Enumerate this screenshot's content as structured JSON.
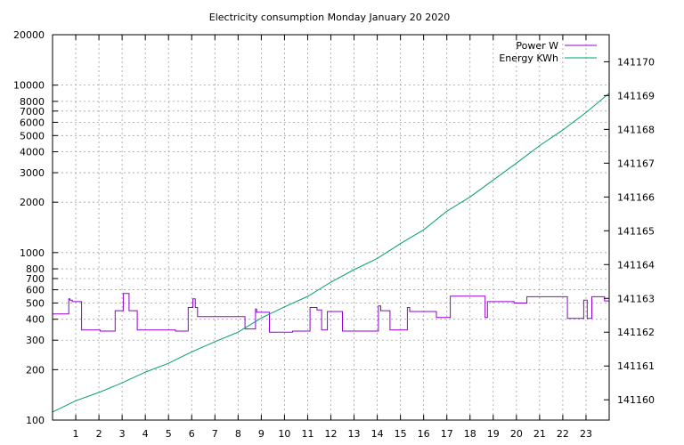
{
  "colors": {
    "power": "#9400d3",
    "energy": "#009e73",
    "grid": "#a0a0a0",
    "axis": "#000000"
  },
  "chart_data": {
    "type": "line",
    "title": "Electricity consumption Monday January 20 2020",
    "xlabel": "",
    "ylabel": "",
    "xlim": [
      0,
      24
    ],
    "x_ticks": [
      1,
      2,
      3,
      4,
      5,
      6,
      7,
      8,
      9,
      10,
      11,
      12,
      13,
      14,
      15,
      16,
      17,
      18,
      19,
      20,
      21,
      22,
      23
    ],
    "ylim_left": [
      100,
      20000
    ],
    "y_scale_left": "log",
    "y_ticks_left": [
      100,
      200,
      300,
      400,
      500,
      600,
      700,
      800,
      1000,
      2000,
      3000,
      4000,
      5000,
      6000,
      7000,
      8000,
      10000,
      20000
    ],
    "ylim_right": [
      141159.4,
      141170.8
    ],
    "y_ticks_right": [
      141160,
      141161,
      141162,
      141163,
      141164,
      141165,
      141166,
      141167,
      141168,
      141169,
      141170
    ],
    "grid": true,
    "legend_position": "top-right",
    "series": [
      {
        "name": "Power W",
        "axis": "left",
        "step": true,
        "x": [
          0,
          0.7,
          0.75,
          0.85,
          1.25,
          2.05,
          2.7,
          3.05,
          3.3,
          3.65,
          5.3,
          5.85,
          6.05,
          6.15,
          6.25,
          6.95,
          8.3,
          8.75,
          8.8,
          9.35,
          10.35,
          11.1,
          11.4,
          11.6,
          11.85,
          12.5,
          14.05,
          14.15,
          14.55,
          15.3,
          15.4,
          16.3,
          16.55,
          17.15,
          18.65,
          18.75,
          19.9,
          20.45,
          22.2,
          22.9,
          23.05,
          23.25,
          23.8,
          24
        ],
        "y": [
          430,
          530,
          520,
          510,
          345,
          340,
          450,
          570,
          450,
          345,
          340,
          470,
          530,
          470,
          415,
          415,
          350,
          460,
          440,
          335,
          340,
          470,
          455,
          345,
          445,
          340,
          480,
          450,
          345,
          470,
          445,
          445,
          410,
          550,
          410,
          510,
          500,
          545,
          405,
          520,
          405,
          545,
          515,
          400
        ]
      },
      {
        "name": "Energy KWh",
        "axis": "right",
        "step": false,
        "x": [
          0,
          1,
          2,
          3,
          4,
          5,
          6,
          7,
          8,
          9,
          10,
          11,
          12,
          13,
          14,
          15,
          16,
          17,
          18,
          19,
          20,
          21,
          22,
          23,
          24
        ],
        "y": [
          141159.64,
          141159.97,
          141160.22,
          141160.5,
          141160.82,
          141161.08,
          141161.42,
          141161.72,
          141162.0,
          141162.42,
          141162.75,
          141163.06,
          141163.48,
          141163.85,
          141164.18,
          141164.62,
          141165.03,
          141165.58,
          141166.0,
          141166.5,
          141167.0,
          141167.52,
          141167.98,
          141168.5,
          141169.07
        ]
      }
    ]
  }
}
